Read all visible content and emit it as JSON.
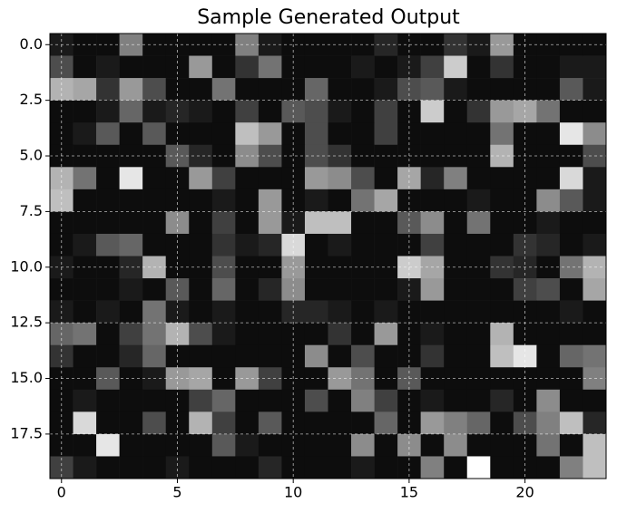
{
  "chart_data": {
    "type": "heatmap",
    "title": "Sample Generated Output",
    "colormap": "gray",
    "grid": true,
    "xlim": [
      -0.5,
      23.5
    ],
    "ylim": [
      19.5,
      -0.5
    ],
    "xticks": [
      0,
      5,
      10,
      15,
      20
    ],
    "yticks": [
      {
        "value": 0,
        "label": "0.0"
      },
      {
        "value": 2.5,
        "label": "2.5"
      },
      {
        "value": 5,
        "label": "5.0"
      },
      {
        "value": 7.5,
        "label": "7.5"
      },
      {
        "value": 10,
        "label": "10.0"
      },
      {
        "value": 12.5,
        "label": "12.5"
      },
      {
        "value": 15,
        "label": "15.0"
      },
      {
        "value": 17.5,
        "label": "17.5"
      }
    ],
    "values": [
      [
        0.1,
        0.05,
        0.05,
        0.5,
        0.05,
        0.05,
        0.05,
        0.05,
        0.5,
        0.1,
        0.05,
        0.05,
        0.05,
        0.05,
        0.15,
        0.05,
        0.05,
        0.2,
        0.1,
        0.6,
        0.05,
        0.05,
        0.05,
        0.05
      ],
      [
        0.3,
        0.05,
        0.1,
        0.05,
        0.05,
        0.05,
        0.6,
        0.05,
        0.2,
        0.45,
        0.05,
        0.05,
        0.05,
        0.1,
        0.05,
        0.1,
        0.25,
        0.8,
        0.05,
        0.2,
        0.05,
        0.05,
        0.1,
        0.1
      ],
      [
        0.7,
        0.65,
        0.2,
        0.6,
        0.3,
        0.05,
        0.05,
        0.45,
        0.05,
        0.05,
        0.05,
        0.4,
        0.05,
        0.05,
        0.1,
        0.3,
        0.35,
        0.1,
        0.05,
        0.05,
        0.05,
        0.05,
        0.35,
        0.1
      ],
      [
        0.05,
        0.05,
        0.1,
        0.4,
        0.1,
        0.15,
        0.1,
        0.05,
        0.25,
        0.05,
        0.35,
        0.3,
        0.1,
        0.05,
        0.25,
        0.05,
        0.8,
        0.05,
        0.2,
        0.6,
        0.65,
        0.45,
        0.05,
        0.05
      ],
      [
        0.05,
        0.1,
        0.35,
        0.05,
        0.35,
        0.05,
        0.05,
        0.05,
        0.75,
        0.6,
        0.05,
        0.3,
        0.05,
        0.05,
        0.25,
        0.05,
        0.05,
        0.05,
        0.05,
        0.45,
        0.05,
        0.05,
        0.9,
        0.55
      ],
      [
        0.05,
        0.05,
        0.05,
        0.05,
        0.05,
        0.35,
        0.15,
        0.05,
        0.55,
        0.3,
        0.05,
        0.3,
        0.2,
        0.05,
        0.05,
        0.05,
        0.05,
        0.05,
        0.05,
        0.7,
        0.05,
        0.05,
        0.05,
        0.3
      ],
      [
        0.7,
        0.45,
        0.05,
        0.9,
        0.05,
        0.05,
        0.6,
        0.25,
        0.05,
        0.05,
        0.05,
        0.6,
        0.55,
        0.3,
        0.05,
        0.65,
        0.15,
        0.5,
        0.05,
        0.05,
        0.05,
        0.05,
        0.85,
        0.1
      ],
      [
        0.75,
        0.05,
        0.05,
        0.05,
        0.05,
        0.05,
        0.05,
        0.1,
        0.05,
        0.6,
        0.05,
        0.1,
        0.05,
        0.45,
        0.65,
        0.05,
        0.05,
        0.05,
        0.1,
        0.05,
        0.05,
        0.55,
        0.35,
        0.1
      ],
      [
        0.05,
        0.05,
        0.05,
        0.05,
        0.05,
        0.55,
        0.05,
        0.25,
        0.05,
        0.6,
        0.1,
        0.75,
        0.75,
        0.05,
        0.05,
        0.35,
        0.55,
        0.05,
        0.45,
        0.05,
        0.05,
        0.1,
        0.05,
        0.05
      ],
      [
        0.05,
        0.1,
        0.35,
        0.4,
        0.05,
        0.05,
        0.05,
        0.2,
        0.1,
        0.15,
        0.85,
        0.05,
        0.1,
        0.05,
        0.05,
        0.05,
        0.25,
        0.05,
        0.05,
        0.05,
        0.2,
        0.15,
        0.05,
        0.1
      ],
      [
        0.1,
        0.05,
        0.05,
        0.15,
        0.7,
        0.05,
        0.05,
        0.3,
        0.05,
        0.05,
        0.6,
        0.05,
        0.05,
        0.05,
        0.05,
        0.8,
        0.65,
        0.05,
        0.05,
        0.2,
        0.15,
        0.05,
        0.45,
        0.7
      ],
      [
        0.05,
        0.05,
        0.05,
        0.1,
        0.05,
        0.35,
        0.05,
        0.4,
        0.05,
        0.15,
        0.55,
        0.05,
        0.05,
        0.05,
        0.05,
        0.1,
        0.6,
        0.05,
        0.05,
        0.05,
        0.25,
        0.3,
        0.05,
        0.65
      ],
      [
        0.1,
        0.05,
        0.1,
        0.05,
        0.45,
        0.1,
        0.05,
        0.1,
        0.05,
        0.05,
        0.15,
        0.15,
        0.1,
        0.05,
        0.1,
        0.05,
        0.05,
        0.05,
        0.05,
        0.05,
        0.05,
        0.05,
        0.1,
        0.05
      ],
      [
        0.4,
        0.45,
        0.05,
        0.25,
        0.45,
        0.7,
        0.3,
        0.1,
        0.05,
        0.05,
        0.05,
        0.05,
        0.2,
        0.05,
        0.6,
        0.05,
        0.1,
        0.05,
        0.05,
        0.7,
        0.05,
        0.05,
        0.05,
        0.05
      ],
      [
        0.2,
        0.05,
        0.05,
        0.15,
        0.4,
        0.05,
        0.05,
        0.05,
        0.05,
        0.05,
        0.05,
        0.55,
        0.05,
        0.3,
        0.05,
        0.05,
        0.2,
        0.05,
        0.05,
        0.75,
        0.9,
        0.05,
        0.4,
        0.45
      ],
      [
        0.05,
        0.05,
        0.35,
        0.05,
        0.1,
        0.6,
        0.65,
        0.05,
        0.6,
        0.25,
        0.05,
        0.05,
        0.6,
        0.45,
        0.05,
        0.35,
        0.05,
        0.05,
        0.05,
        0.05,
        0.05,
        0.05,
        0.05,
        0.5
      ],
      [
        0.05,
        0.1,
        0.05,
        0.05,
        0.05,
        0.05,
        0.25,
        0.4,
        0.05,
        0.05,
        0.05,
        0.3,
        0.05,
        0.5,
        0.25,
        0.05,
        0.1,
        0.05,
        0.05,
        0.15,
        0.05,
        0.55,
        0.05,
        0.05
      ],
      [
        0.05,
        0.85,
        0.05,
        0.05,
        0.3,
        0.05,
        0.7,
        0.25,
        0.05,
        0.35,
        0.05,
        0.05,
        0.05,
        0.05,
        0.4,
        0.05,
        0.6,
        0.5,
        0.4,
        0.05,
        0.3,
        0.5,
        0.75,
        0.15
      ],
      [
        0.05,
        0.05,
        0.9,
        0.05,
        0.05,
        0.05,
        0.05,
        0.35,
        0.1,
        0.05,
        0.05,
        0.05,
        0.05,
        0.55,
        0.05,
        0.55,
        0.05,
        0.55,
        0.05,
        0.05,
        0.05,
        0.45,
        0.05,
        0.75
      ],
      [
        0.25,
        0.1,
        0.05,
        0.05,
        0.05,
        0.1,
        0.05,
        0.05,
        0.05,
        0.15,
        0.05,
        0.05,
        0.05,
        0.1,
        0.05,
        0.05,
        0.5,
        0.05,
        1.0,
        0.05,
        0.05,
        0.05,
        0.5,
        0.75
      ]
    ]
  }
}
